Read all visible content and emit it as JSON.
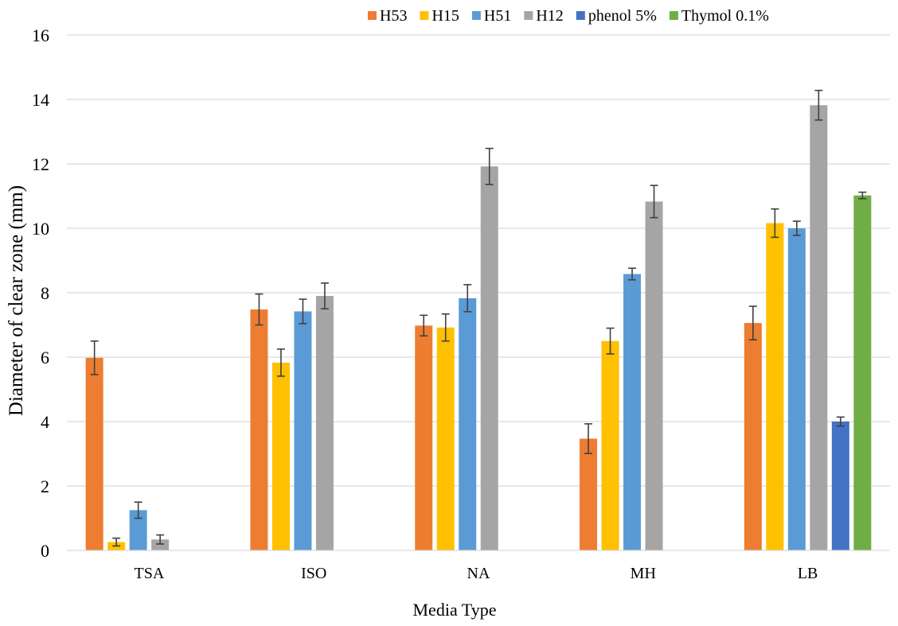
{
  "chart_data": {
    "type": "bar",
    "title": "",
    "xlabel": "Media Type",
    "ylabel": "Diameter of clear zone (mm)",
    "ylim": [
      0,
      16
    ],
    "yticks": [
      0,
      2,
      4,
      6,
      8,
      10,
      12,
      14,
      16
    ],
    "grid": true,
    "legend_position": "top-right",
    "categories": [
      "TSA",
      "ISO",
      "NA",
      "MH",
      "LB"
    ],
    "series": [
      {
        "name": "H53",
        "color": "#ED7D31",
        "values": [
          5.98,
          7.48,
          6.98,
          3.47,
          7.06
        ],
        "errors": [
          0.52,
          0.48,
          0.32,
          0.46,
          0.52
        ]
      },
      {
        "name": "H15",
        "color": "#FFC000",
        "values": [
          0.26,
          5.83,
          6.92,
          6.5,
          10.16
        ],
        "errors": [
          0.12,
          0.42,
          0.42,
          0.4,
          0.44
        ]
      },
      {
        "name": "H51",
        "color": "#5B9BD5",
        "values": [
          1.25,
          7.42,
          7.83,
          8.58,
          10.0
        ],
        "errors": [
          0.25,
          0.38,
          0.42,
          0.18,
          0.22
        ]
      },
      {
        "name": "H12",
        "color": "#A5A5A5",
        "values": [
          0.34,
          7.9,
          11.92,
          10.83,
          13.82
        ],
        "errors": [
          0.14,
          0.4,
          0.56,
          0.5,
          0.46
        ]
      },
      {
        "name": "phenol 5%",
        "color": "#4472C4",
        "values": [
          null,
          null,
          null,
          null,
          4.0
        ],
        "errors": [
          null,
          null,
          null,
          null,
          0.14
        ]
      },
      {
        "name": "Thymol 0.1%",
        "color": "#70AD47",
        "values": [
          null,
          null,
          null,
          null,
          11.02
        ],
        "errors": [
          null,
          null,
          null,
          null,
          0.1
        ]
      }
    ]
  }
}
